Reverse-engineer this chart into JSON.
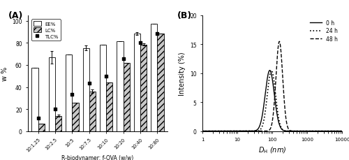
{
  "panel_A": {
    "categories": [
      "10:1.25",
      "10:2.5",
      "10:5",
      "10:7.5",
      "10:10",
      "10:20",
      "10:40",
      "10:80"
    ],
    "EE": [
      57.5,
      67.0,
      69.5,
      75.5,
      78.5,
      81.5,
      88.5,
      97.5
    ],
    "EE_err": [
      0,
      5.5,
      0,
      2.0,
      0,
      0,
      1.5,
      0
    ],
    "LC": [
      6.5,
      14.0,
      25.5,
      36.0,
      44.0,
      62.0,
      78.5,
      88.5
    ],
    "LC_err": [
      0,
      1.0,
      0,
      1.5,
      0,
      0,
      1.0,
      0
    ],
    "TLC": [
      12.0,
      20.0,
      33.5,
      43.5,
      50.0,
      66.0,
      80.0,
      88.5
    ],
    "ylabel": "w %",
    "xlabel": "R-biodynamer: f-OVA (w/w)",
    "ylim": [
      0,
      105
    ],
    "yticks": [
      0,
      20,
      40,
      60,
      80,
      100
    ],
    "panel_label": "(A)"
  },
  "panel_B": {
    "x_peak_0h": 85,
    "x_peak_24h": 95,
    "x_peak_48h": 160,
    "peak_0h": 10.5,
    "peak_24h": 10.5,
    "peak_48h": 15.5,
    "sigma_0h": 0.3,
    "sigma_24h": 0.27,
    "sigma_48h": 0.22,
    "ylabel": "Intensity (%)",
    "ylim": [
      0,
      20
    ],
    "yticks": [
      0,
      5,
      10,
      15,
      20
    ],
    "xlim_log": [
      1,
      10000
    ],
    "panel_label": "(B)",
    "legend_labels": [
      "0 h",
      "24 h",
      "48 h"
    ]
  },
  "figure": {
    "bg_color": "#ffffff",
    "bar_color_EE": "#ffffff",
    "bar_color_LC": "#c8c8c8",
    "hatch_LC": "////",
    "line_color": "#000000"
  }
}
